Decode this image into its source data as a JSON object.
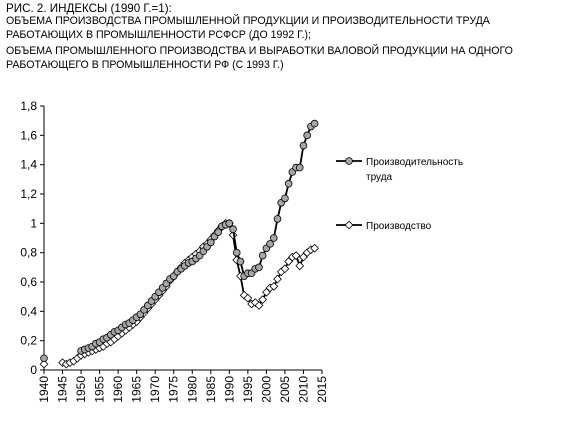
{
  "caption": {
    "line1": "РИС. 2. ИНДЕКСЫ (1990 Г.=1):",
    "line2": "ОБЪЕМА ПРОИЗВОДСТВА ПРОМЫШЛЕННОЙ ПРОДУКЦИИ И ПРОИЗВОДИТЕЛЬНОСТИ ТРУДА",
    "line3": "РАБОТАЮЩИХ В ПРОМЫШЛЕННОСТИ РСФСР (ДО 1992 Г.);",
    "line4": "ОБЪЕМА ПРОМЫШЛЕННОГО ПРОИЗВОДСТВА И ВЫРАБОТКИ ВАЛОВОЙ ПРОДУКЦИИ НА ОДНОГО",
    "line5": "РАБОТАЮЩЕГО В ПРОМЫШЛЕННОСТИ РФ (С 1993 Г.)"
  },
  "colors": {
    "axis": "#000000",
    "series1_line": "#000000",
    "series1_marker": "#a6a6a6",
    "series2_line": "#000000",
    "series2_marker": "#ffffff"
  },
  "chart_data": {
    "type": "line",
    "title": "",
    "xlabel": "",
    "ylabel": "",
    "xlim": [
      1940,
      2015
    ],
    "ylim": [
      0,
      1.8
    ],
    "x_ticks": [
      "1940",
      "1945",
      "1950",
      "1955",
      "1960",
      "1965",
      "1970",
      "1975",
      "1980",
      "1985",
      "1990",
      "1995",
      "2000",
      "2005",
      "2010",
      "2015"
    ],
    "y_ticks": [
      "0",
      "0,2",
      "0,4",
      "0,6",
      "0,8",
      "1",
      "1,2",
      "1,4",
      "1,6",
      "1,8"
    ],
    "grid": false,
    "legend_position": "right",
    "series": [
      {
        "name": "Производительность труда",
        "marker": "circle",
        "points": [
          [
            1940,
            0.08
          ],
          [
            1950,
            0.13
          ],
          [
            1951,
            0.14
          ],
          [
            1952,
            0.15
          ],
          [
            1953,
            0.16
          ],
          [
            1954,
            0.18
          ],
          [
            1955,
            0.19
          ],
          [
            1956,
            0.21
          ],
          [
            1957,
            0.22
          ],
          [
            1958,
            0.24
          ],
          [
            1959,
            0.26
          ],
          [
            1960,
            0.27
          ],
          [
            1961,
            0.29
          ],
          [
            1962,
            0.31
          ],
          [
            1963,
            0.32
          ],
          [
            1964,
            0.34
          ],
          [
            1965,
            0.36
          ],
          [
            1966,
            0.38
          ],
          [
            1967,
            0.41
          ],
          [
            1968,
            0.44
          ],
          [
            1969,
            0.47
          ],
          [
            1970,
            0.5
          ],
          [
            1971,
            0.53
          ],
          [
            1972,
            0.56
          ],
          [
            1973,
            0.59
          ],
          [
            1974,
            0.62
          ],
          [
            1975,
            0.64
          ],
          [
            1976,
            0.67
          ],
          [
            1977,
            0.69
          ],
          [
            1978,
            0.71
          ],
          [
            1979,
            0.73
          ],
          [
            1980,
            0.74
          ],
          [
            1981,
            0.76
          ],
          [
            1982,
            0.78
          ],
          [
            1983,
            0.81
          ],
          [
            1984,
            0.84
          ],
          [
            1985,
            0.87
          ],
          [
            1986,
            0.91
          ],
          [
            1987,
            0.94
          ],
          [
            1988,
            0.98
          ],
          [
            1989,
            0.99
          ],
          [
            1990,
            1.0
          ],
          [
            1991,
            0.96
          ],
          [
            1992,
            0.8
          ],
          [
            1993,
            0.74
          ],
          [
            1994,
            0.64
          ],
          [
            1995,
            0.66
          ],
          [
            1996,
            0.66
          ],
          [
            1997,
            0.69
          ],
          [
            1998,
            0.7
          ],
          [
            1999,
            0.78
          ],
          [
            2000,
            0.83
          ],
          [
            2001,
            0.86
          ],
          [
            2002,
            0.9
          ],
          [
            2003,
            1.03
          ],
          [
            2004,
            1.14
          ],
          [
            2005,
            1.17
          ],
          [
            2006,
            1.27
          ],
          [
            2007,
            1.35
          ],
          [
            2008,
            1.38
          ],
          [
            2009,
            1.38
          ],
          [
            2010,
            1.53
          ],
          [
            2011,
            1.6
          ],
          [
            2012,
            1.66
          ],
          [
            2013,
            1.68
          ]
        ]
      },
      {
        "name": "Производство",
        "marker": "diamond",
        "points": [
          [
            1940,
            0.04
          ],
          [
            1945,
            0.05
          ],
          [
            1946,
            0.04
          ],
          [
            1947,
            0.05
          ],
          [
            1948,
            0.06
          ],
          [
            1949,
            0.08
          ],
          [
            1950,
            0.1
          ],
          [
            1951,
            0.11
          ],
          [
            1952,
            0.12
          ],
          [
            1953,
            0.13
          ],
          [
            1954,
            0.14
          ],
          [
            1955,
            0.15
          ],
          [
            1956,
            0.16
          ],
          [
            1957,
            0.18
          ],
          [
            1958,
            0.19
          ],
          [
            1959,
            0.21
          ],
          [
            1960,
            0.23
          ],
          [
            1961,
            0.25
          ],
          [
            1962,
            0.27
          ],
          [
            1963,
            0.29
          ],
          [
            1964,
            0.31
          ],
          [
            1965,
            0.33
          ],
          [
            1966,
            0.36
          ],
          [
            1967,
            0.39
          ],
          [
            1968,
            0.42
          ],
          [
            1969,
            0.45
          ],
          [
            1970,
            0.48
          ],
          [
            1971,
            0.51
          ],
          [
            1972,
            0.54
          ],
          [
            1973,
            0.57
          ],
          [
            1974,
            0.61
          ],
          [
            1975,
            0.64
          ],
          [
            1976,
            0.67
          ],
          [
            1977,
            0.7
          ],
          [
            1978,
            0.73
          ],
          [
            1979,
            0.75
          ],
          [
            1980,
            0.77
          ],
          [
            1981,
            0.79
          ],
          [
            1982,
            0.81
          ],
          [
            1983,
            0.84
          ],
          [
            1984,
            0.86
          ],
          [
            1985,
            0.89
          ],
          [
            1986,
            0.92
          ],
          [
            1987,
            0.95
          ],
          [
            1988,
            0.98
          ],
          [
            1989,
            1.0
          ],
          [
            1990,
            1.0
          ],
          [
            1991,
            0.92
          ],
          [
            1992,
            0.75
          ],
          [
            1993,
            0.64
          ],
          [
            1994,
            0.51
          ],
          [
            1995,
            0.49
          ],
          [
            1996,
            0.45
          ],
          [
            1997,
            0.46
          ],
          [
            1998,
            0.44
          ],
          [
            1999,
            0.48
          ],
          [
            2000,
            0.53
          ],
          [
            2001,
            0.56
          ],
          [
            2002,
            0.57
          ],
          [
            2003,
            0.62
          ],
          [
            2004,
            0.67
          ],
          [
            2005,
            0.69
          ],
          [
            2006,
            0.74
          ],
          [
            2007,
            0.77
          ],
          [
            2008,
            0.78
          ],
          [
            2009,
            0.71
          ],
          [
            2010,
            0.77
          ],
          [
            2011,
            0.8
          ],
          [
            2012,
            0.82
          ],
          [
            2013,
            0.83
          ]
        ]
      }
    ]
  }
}
